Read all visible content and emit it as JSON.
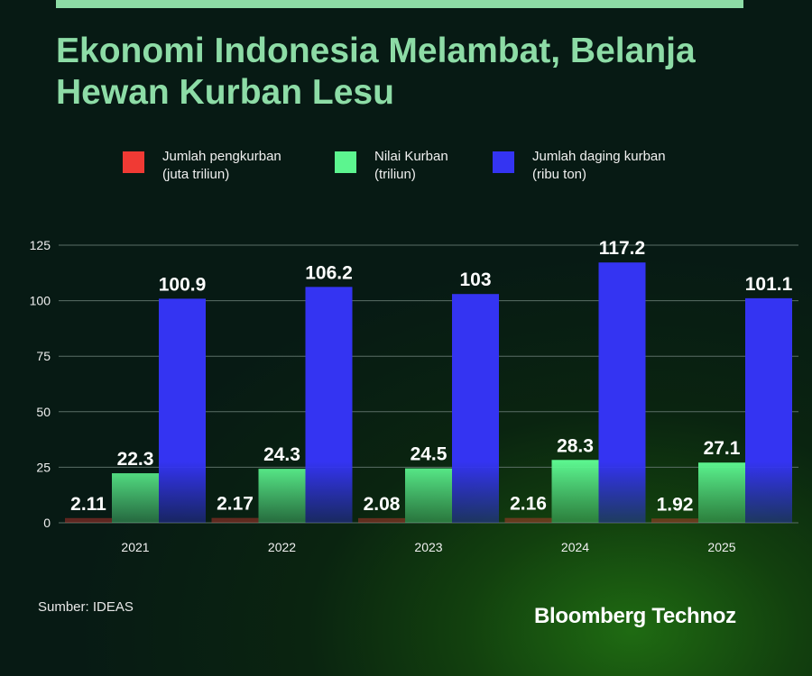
{
  "header": {
    "title": "Ekonomi Indonesia Melambat, Belanja Hewan Kurban Lesu"
  },
  "legend": [
    {
      "line1": "Jumlah pengkurban",
      "line2": "(juta triliun)",
      "color": "#f03a34"
    },
    {
      "line1": "Nilai Kurban",
      "line2": "(triliun)",
      "color": "#5cf58f"
    },
    {
      "line1": "Jumlah daging kurban",
      "line2": "(ribu ton)",
      "color": "#3434f2"
    }
  ],
  "chart_data": {
    "type": "bar",
    "categories": [
      "2021",
      "2022",
      "2023",
      "2024",
      "2025"
    ],
    "series": [
      {
        "name": "Jumlah pengkurban (juta triliun)",
        "values": [
          2.11,
          2.17,
          2.08,
          2.16,
          1.92
        ],
        "labels": [
          "2.11",
          "2.17",
          "2.08",
          "2.16",
          "1.92"
        ],
        "color": "#f03a34"
      },
      {
        "name": "Nilai Kurban (triliun)",
        "values": [
          22.3,
          24.3,
          24.5,
          28.3,
          27.1
        ],
        "labels": [
          "22.3",
          "24.3",
          "24.5",
          "28.3",
          "27.1"
        ],
        "color": "#5cf58f"
      },
      {
        "name": "Jumlah daging kurban (ribu ton)",
        "values": [
          100.9,
          106.2,
          103,
          117.2,
          101.1
        ],
        "labels": [
          "100.9",
          "106.2",
          "103",
          "117.2",
          "101.1"
        ],
        "color": "#3434f2"
      }
    ],
    "yticks": [
      0,
      25,
      50,
      75,
      100,
      125
    ],
    "ylim": [
      0,
      125
    ],
    "grid": true,
    "legend_position": "top",
    "title": "Ekonomi Indonesia Melambat, Belanja Hewan Kurban Lesu"
  },
  "footer": {
    "source": "Sumber:  IDEAS",
    "brand": "Bloomberg Technoz"
  }
}
